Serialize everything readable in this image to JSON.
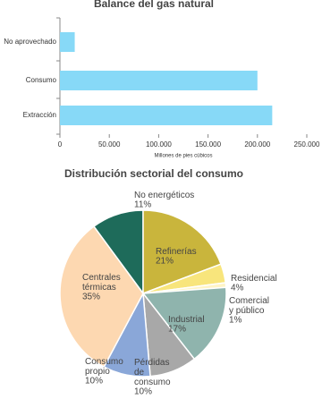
{
  "chart_data": [
    {
      "type": "bar",
      "orientation": "horizontal",
      "title": "Balance del gas natural",
      "categories": [
        "No aprovechado",
        "Consumo",
        "Extracción"
      ],
      "values": [
        15000,
        200000,
        215000
      ],
      "color": "#87d9f7",
      "xlabel": "Millones de pies cúbicos",
      "xlim": [
        0,
        250000
      ],
      "xticks": [
        0,
        {
          "value": 50000,
          "label": "50.000"
        },
        {
          "value": 100000,
          "label": "100.000"
        },
        {
          "value": 150000,
          "label": "150.000"
        },
        {
          "value": 200000,
          "label": "200.000"
        },
        {
          "value": 250000,
          "label": "250.000"
        }
      ]
    },
    {
      "type": "pie",
      "title": "Distribución sectorial del consumo",
      "categories": [
        "No energéticos",
        "Refinerías",
        "Residencial",
        "Comercial\ny público",
        "Industrial",
        "Pérdidas\nde\nconsumo",
        "Consumo\npropio",
        "Centrales\ntérmicas"
      ],
      "values": [
        11,
        21,
        4,
        1,
        17,
        10,
        10,
        35
      ],
      "value_labels": [
        "11%",
        "21%",
        "4%",
        "1%",
        "17%",
        "10%",
        "10%",
        "35%"
      ],
      "colors": [
        "#1e6b5a",
        "#c9b53c",
        "#f8e57c",
        "#fff4c6",
        "#8fb4ad",
        "#a8a8a8",
        "#8aa7d8",
        "#fdd8b1"
      ]
    }
  ]
}
